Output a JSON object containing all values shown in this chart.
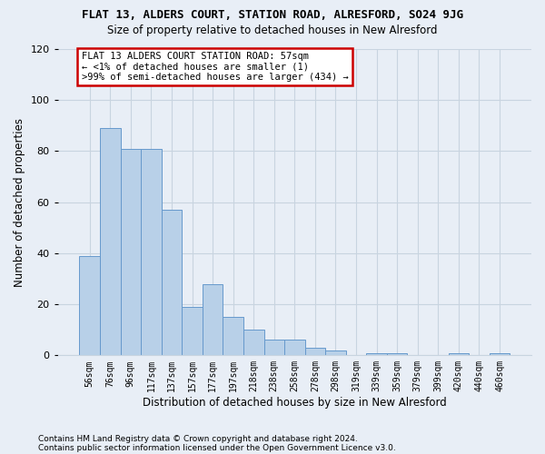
{
  "title1": "FLAT 13, ALDERS COURT, STATION ROAD, ALRESFORD, SO24 9JG",
  "title2": "Size of property relative to detached houses in New Alresford",
  "xlabel": "Distribution of detached houses by size in New Alresford",
  "ylabel": "Number of detached properties",
  "footer1": "Contains HM Land Registry data © Crown copyright and database right 2024.",
  "footer2": "Contains public sector information licensed under the Open Government Licence v3.0.",
  "annotation_line1": "FLAT 13 ALDERS COURT STATION ROAD: 57sqm",
  "annotation_line2": "← <1% of detached houses are smaller (1)",
  "annotation_line3": ">99% of semi-detached houses are larger (434) →",
  "bar_color": "#b8d0e8",
  "bar_edge_color": "#6699cc",
  "annotation_box_color": "#ffffff",
  "annotation_box_edge": "#cc0000",
  "background_color": "#e8eef6",
  "grid_color": "#c8d4e0",
  "categories": [
    "56sqm",
    "76sqm",
    "96sqm",
    "117sqm",
    "137sqm",
    "157sqm",
    "177sqm",
    "197sqm",
    "218sqm",
    "238sqm",
    "258sqm",
    "278sqm",
    "298sqm",
    "319sqm",
    "339sqm",
    "359sqm",
    "379sqm",
    "399sqm",
    "420sqm",
    "440sqm",
    "460sqm"
  ],
  "values": [
    39,
    89,
    81,
    81,
    57,
    19,
    28,
    15,
    10,
    6,
    6,
    3,
    2,
    0,
    1,
    1,
    0,
    0,
    1,
    0,
    1
  ],
  "ylim": [
    0,
    120
  ],
  "yticks": [
    0,
    20,
    40,
    60,
    80,
    100,
    120
  ],
  "figsize": [
    6.0,
    5.0
  ],
  "dpi": 100
}
